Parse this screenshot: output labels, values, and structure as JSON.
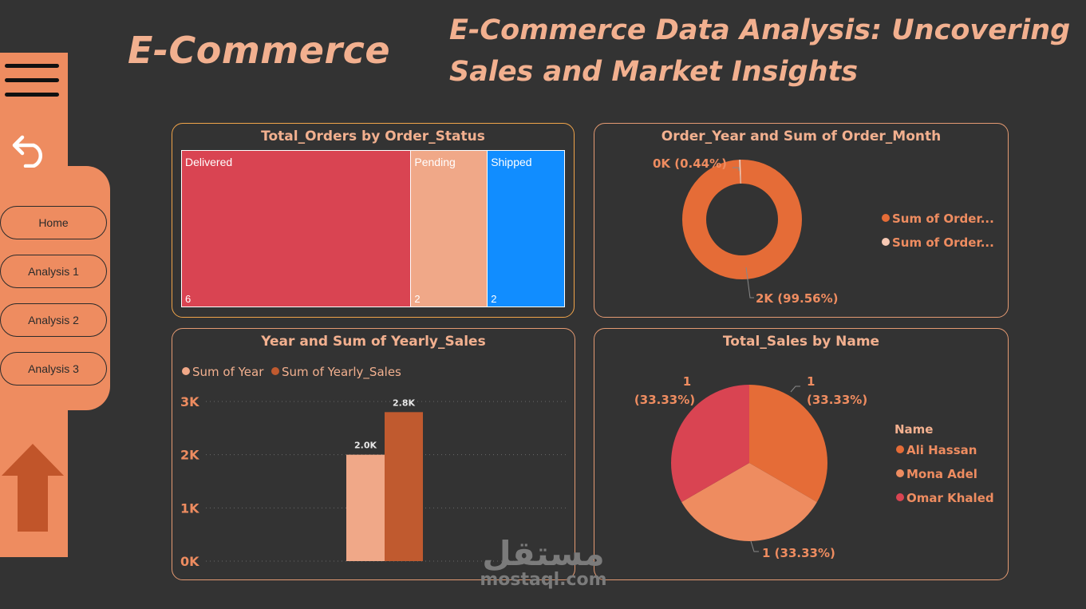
{
  "header": {
    "brand": "E-Commerce",
    "title": "E-Commerce Data Analysis: Uncovering Sales and Market Insights"
  },
  "sidebar": {
    "icons": [
      "menu-icon",
      "back-icon",
      "up-arrow-icon"
    ],
    "nav": [
      {
        "label": "Home"
      },
      {
        "label": "Analysis 1"
      },
      {
        "label": "Analysis 2"
      },
      {
        "label": "Analysis 3"
      }
    ]
  },
  "colors": {
    "background": "#333333",
    "accent": "#ee8c60",
    "title": "#f2b08f",
    "delivered": "#d94452",
    "pending": "#f0a888",
    "shipped": "#118dff",
    "orange": "#e56c37",
    "light_orange": "#ee8c60",
    "red": "#d94452"
  },
  "chart_data": [
    {
      "type": "treemap",
      "title": "Total_Orders by Order_Status",
      "categories": [
        "Delivered",
        "Pending",
        "Shipped"
      ],
      "values": [
        6,
        2,
        2
      ],
      "value_labels": [
        "6",
        "2",
        "2"
      ]
    },
    {
      "type": "pie",
      "variant": "donut",
      "title": "Order_Year and Sum of Order_Month",
      "legend": [
        "Sum of Order...",
        "Sum of Order..."
      ],
      "values": [
        99.56,
        0.44
      ],
      "labels": [
        "2K (99.56%)",
        "0K (0.44%)"
      ]
    },
    {
      "type": "bar",
      "title": "Year and Sum of Yearly_Sales",
      "series": [
        {
          "name": "Sum of Year",
          "values": [
            2000
          ],
          "label": "2.0K"
        },
        {
          "name": "Sum of Yearly_Sales",
          "values": [
            2800
          ],
          "label": "2.8K"
        }
      ],
      "ylim": [
        0,
        3000
      ],
      "yticks": [
        "0K",
        "1K",
        "2K",
        "3K"
      ],
      "legend_position": "top-left",
      "grid": true
    },
    {
      "type": "pie",
      "title": "Total_Sales by Name",
      "legend_title": "Name",
      "categories": [
        "Ali Hassan",
        "Mona Adel",
        "Omar Khaled"
      ],
      "values": [
        1,
        1,
        1
      ],
      "labels": [
        [
          "1",
          "(33.33%)"
        ],
        [
          "1 (33.33%)"
        ],
        [
          "1",
          "(33.33%)"
        ]
      ]
    }
  ],
  "watermark": {
    "arabic": "مستقل",
    "latin": "mostaql.com"
  }
}
